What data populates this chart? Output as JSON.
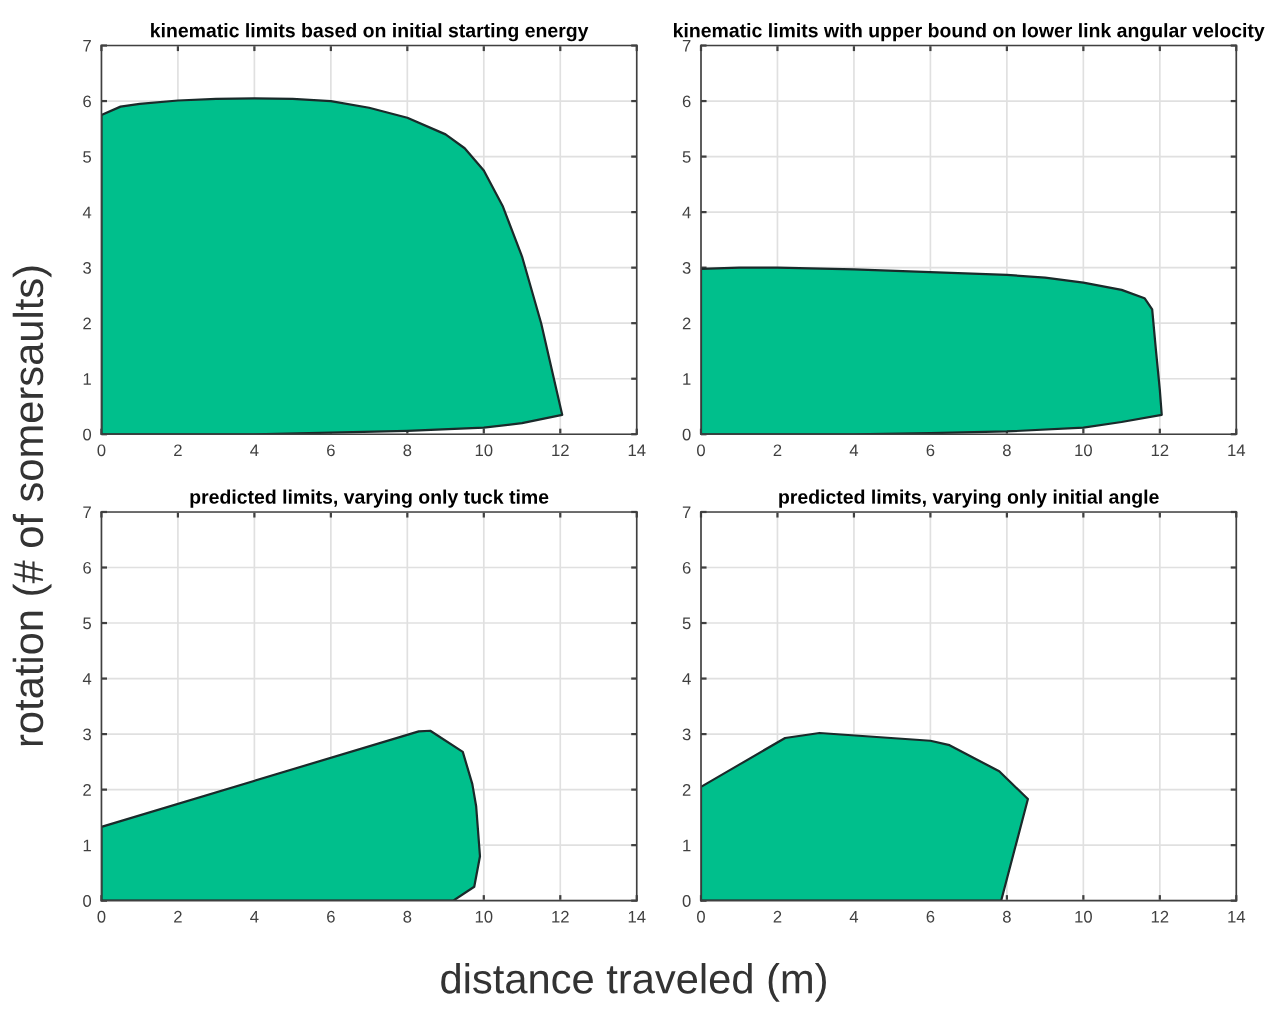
{
  "chart_data": [
    {
      "type": "area",
      "title": "kinematic limits based on initial starting energy",
      "ylabel": "rotation (# of somersaults)",
      "xlim": [
        0,
        14
      ],
      "ylim": [
        0,
        7
      ],
      "xticks": [
        0,
        2,
        4,
        6,
        8,
        10,
        12,
        14
      ],
      "yticks": [
        0,
        1,
        2,
        3,
        4,
        5,
        6,
        7
      ],
      "grid": true,
      "series": [
        {
          "color": "#00bf8c",
          "x": [
            0,
            0,
            0.5,
            1,
            2,
            3,
            4,
            5,
            6,
            7,
            8,
            9,
            9.5,
            10,
            10.5,
            11,
            11.5,
            11.8,
            12.05,
            11,
            10,
            8,
            6,
            4,
            0
          ],
          "values": [
            0,
            5.75,
            5.9,
            5.95,
            6.01,
            6.04,
            6.05,
            6.04,
            6.0,
            5.88,
            5.7,
            5.4,
            5.15,
            4.75,
            4.1,
            3.2,
            2.0,
            1.1,
            0.35,
            0.2,
            0.12,
            0.06,
            0.03,
            0,
            0
          ]
        }
      ]
    },
    {
      "type": "area",
      "title": "kinematic limits with upper bound on lower link angular velocity",
      "xlim": [
        0,
        14
      ],
      "ylim": [
        0,
        7
      ],
      "xticks": [
        0,
        2,
        4,
        6,
        8,
        10,
        12,
        14
      ],
      "yticks": [
        0,
        1,
        2,
        3,
        4,
        5,
        6,
        7
      ],
      "grid": true,
      "series": [
        {
          "color": "#00bf8c",
          "x": [
            0,
            0,
            1,
            2,
            4,
            6,
            8,
            9,
            10,
            11,
            11.6,
            11.8,
            11.9,
            12,
            12.05,
            11,
            10,
            8,
            6,
            4,
            0
          ],
          "values": [
            0,
            2.98,
            3.0,
            3.0,
            2.97,
            2.92,
            2.87,
            2.82,
            2.73,
            2.6,
            2.45,
            2.25,
            1.5,
            0.8,
            0.35,
            0.22,
            0.12,
            0.05,
            0.02,
            0,
            0
          ]
        }
      ]
    },
    {
      "type": "area",
      "title": "predicted limits, varying only tuck time",
      "xlabel": "distance traveled (m)",
      "xlim": [
        0,
        14
      ],
      "ylim": [
        0,
        7
      ],
      "xticks": [
        0,
        2,
        4,
        6,
        8,
        10,
        12,
        14
      ],
      "yticks": [
        0,
        1,
        2,
        3,
        4,
        5,
        6,
        7
      ],
      "grid": true,
      "series": [
        {
          "color": "#00bf8c",
          "x": [
            0,
            0,
            8.3,
            8.6,
            9.45,
            9.7,
            9.8,
            9.9,
            9.75,
            9.2,
            0
          ],
          "values": [
            0,
            1.33,
            3.05,
            3.06,
            2.68,
            2.1,
            1.7,
            0.8,
            0.25,
            0,
            0
          ]
        }
      ]
    },
    {
      "type": "area",
      "title": "predicted limits, varying only initial angle",
      "xlim": [
        0,
        14
      ],
      "ylim": [
        0,
        7
      ],
      "xticks": [
        0,
        2,
        4,
        6,
        8,
        10,
        12,
        14
      ],
      "yticks": [
        0,
        1,
        2,
        3,
        4,
        5,
        6,
        7
      ],
      "grid": true,
      "series": [
        {
          "color": "#00bf8c",
          "x": [
            0,
            0,
            1,
            2.2,
            3.1,
            6,
            6.5,
            7.8,
            8.55,
            7.85,
            0
          ],
          "values": [
            0,
            2.05,
            2.45,
            2.93,
            3.02,
            2.88,
            2.8,
            2.33,
            1.83,
            0,
            0
          ]
        }
      ]
    }
  ]
}
